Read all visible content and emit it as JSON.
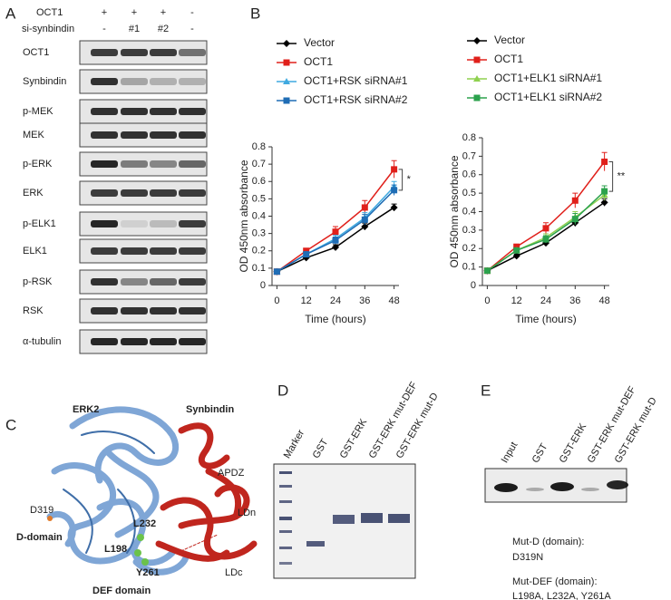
{
  "panel_a": {
    "label": "A",
    "header_rows": [
      {
        "name": "OCT1",
        "lanes": [
          "+",
          "+",
          "+",
          "-"
        ]
      },
      {
        "name": "si-synbindin",
        "lanes": [
          "-",
          "#1",
          "#2",
          "-"
        ]
      }
    ],
    "blots": [
      "OCT1",
      "Synbindin",
      "p-MEK",
      "MEK",
      "p-ERK",
      "ERK",
      "p-ELK1",
      "ELK1",
      "p-RSK",
      "RSK",
      "α-tubulin"
    ]
  },
  "panel_b": {
    "label": "B"
  },
  "chart_data": [
    {
      "type": "line",
      "xlabel": "Time (hours)",
      "ylabel": "OD 450nm absorbance",
      "annotation": "*",
      "x": [
        0,
        12,
        24,
        36,
        48
      ],
      "xlim": [
        -2,
        50
      ],
      "xticks": [
        0,
        12,
        24,
        36,
        48
      ],
      "ylim": [
        0,
        0.8
      ],
      "yticks": [
        0,
        0.1,
        0.2,
        0.3,
        0.4,
        0.5,
        0.6,
        0.7,
        0.8
      ],
      "series": [
        {
          "name": "Vector",
          "color": "#000000",
          "marker": "diamond",
          "values": [
            0.08,
            0.16,
            0.22,
            0.34,
            0.45
          ],
          "errors": [
            0.005,
            0.01,
            0.015,
            0.02,
            0.02
          ]
        },
        {
          "name": "OCT1",
          "color": "#e0201b",
          "marker": "square",
          "values": [
            0.08,
            0.2,
            0.31,
            0.45,
            0.67
          ],
          "errors": [
            0.005,
            0.01,
            0.03,
            0.04,
            0.05
          ]
        },
        {
          "name": "OCT1+RSK siRNA#1",
          "color": "#3fa9e0",
          "marker": "triangle",
          "values": [
            0.08,
            0.18,
            0.27,
            0.39,
            0.57
          ],
          "errors": [
            0.005,
            0.01,
            0.02,
            0.03,
            0.03
          ]
        },
        {
          "name": "OCT1+RSK siRNA#2",
          "color": "#1f6db5",
          "marker": "square",
          "values": [
            0.08,
            0.18,
            0.26,
            0.38,
            0.55
          ],
          "errors": [
            0.005,
            0.01,
            0.02,
            0.03,
            0.03
          ]
        }
      ]
    },
    {
      "type": "line",
      "xlabel": "Time (hours)",
      "ylabel": "OD 450nm absorbance",
      "annotation": "**",
      "x": [
        0,
        12,
        24,
        36,
        48
      ],
      "xlim": [
        -2,
        50
      ],
      "xticks": [
        0,
        12,
        24,
        36,
        48
      ],
      "ylim": [
        0,
        0.8
      ],
      "yticks": [
        0,
        0.1,
        0.2,
        0.3,
        0.4,
        0.5,
        0.6,
        0.7,
        0.8
      ],
      "series": [
        {
          "name": "Vector",
          "color": "#000000",
          "marker": "diamond",
          "values": [
            0.08,
            0.16,
            0.23,
            0.34,
            0.45
          ],
          "errors": [
            0.005,
            0.01,
            0.015,
            0.02,
            0.02
          ]
        },
        {
          "name": "OCT1",
          "color": "#e0201b",
          "marker": "square",
          "values": [
            0.08,
            0.21,
            0.31,
            0.46,
            0.67
          ],
          "errors": [
            0.005,
            0.01,
            0.03,
            0.04,
            0.05
          ]
        },
        {
          "name": "OCT1+ELK1 siRNA#1",
          "color": "#8fd14f",
          "marker": "triangle",
          "values": [
            0.08,
            0.19,
            0.26,
            0.37,
            0.49
          ],
          "errors": [
            0.005,
            0.01,
            0.02,
            0.03,
            0.03
          ]
        },
        {
          "name": "OCT1+ELK1 siRNA#2",
          "color": "#2ca24d",
          "marker": "square",
          "values": [
            0.08,
            0.19,
            0.25,
            0.36,
            0.51
          ],
          "errors": [
            0.005,
            0.01,
            0.02,
            0.03,
            0.03
          ]
        }
      ]
    }
  ],
  "panel_c": {
    "label": "C",
    "labels": [
      "ERK2",
      "Synbindin",
      "APDZ",
      "D319",
      "D-domain",
      "L232",
      "L198",
      "Y261",
      "LDn",
      "LDc",
      "DEF domain"
    ]
  },
  "panel_d": {
    "label": "D",
    "lanes": [
      "Marker",
      "GST",
      "GST-ERK",
      "GST-ERK mut-DEF",
      "GST-ERK mut-D"
    ]
  },
  "panel_e": {
    "label": "E",
    "lanes": [
      "Input",
      "GST",
      "GST-ERK",
      "GST-ERK mut-DEF",
      "GST-ERK mut-D"
    ],
    "notes": [
      "Mut-D (domain):",
      "D319N",
      "Mut-DEF (domain):",
      "L198A, L232A, Y261A"
    ]
  }
}
